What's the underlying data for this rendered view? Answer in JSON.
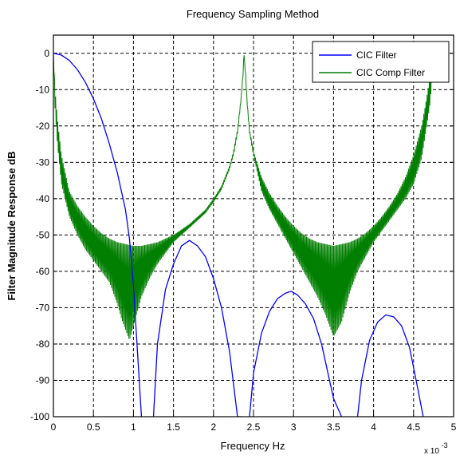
{
  "colors": {
    "cic_filter": "#0000ff",
    "cic_comp_filter": "#007f00",
    "axes": "#000000",
    "background": "#ffffff"
  },
  "chart_data": {
    "type": "line",
    "title": "Frequency Sampling Method",
    "xlabel": "Frequency Hz",
    "ylabel": "Filter Magnitude Response dB",
    "x_multiplier_label": "x 10",
    "x_multiplier_exponent": "-3",
    "xlim": [
      0,
      5
    ],
    "ylim": [
      -100,
      5
    ],
    "x_ticks": [
      0,
      0.5,
      1,
      1.5,
      2,
      2.5,
      3,
      3.5,
      4,
      4.5,
      5
    ],
    "x_tick_labels": [
      "0",
      "0.5",
      "1",
      "1.5",
      "2",
      "2.5",
      "3",
      "3.5",
      "4",
      "4.5",
      "5"
    ],
    "y_ticks": [
      0,
      -10,
      -20,
      -30,
      -40,
      -50,
      -60,
      -70,
      -80,
      -90,
      -100
    ],
    "y_tick_labels": [
      "0",
      "-10",
      "-20",
      "-30",
      "-40",
      "-50",
      "-60",
      "-70",
      "-80",
      "-90",
      "-100"
    ],
    "grid": true,
    "legend_position": "top-right",
    "series": [
      {
        "name": "CIC Filter",
        "color": "#0000ff",
        "x": [
          0,
          0.1,
          0.2,
          0.3,
          0.4,
          0.5,
          0.6,
          0.7,
          0.8,
          0.9,
          0.95,
          1.0,
          1.05,
          1.1
        ],
        "y": [
          0,
          -0.5,
          -2,
          -4.5,
          -8,
          -12.5,
          -18,
          -25,
          -33,
          -43,
          -51,
          -64,
          -82,
          -100
        ],
        "segments": [
          {
            "x": [
              1.25,
              1.3,
              1.4,
              1.5,
              1.6,
              1.7,
              1.8,
              1.9,
              2.0,
              2.1,
              2.2,
              2.3,
              2.35
            ],
            "y": [
              -100,
              -80,
              -65,
              -58,
              -53,
              -51.5,
              -53,
              -56,
              -62,
              -70,
              -82,
              -100,
              -100
            ]
          },
          {
            "x": [
              2.45,
              2.5,
              2.6,
              2.7,
              2.8,
              2.9,
              2.97,
              3.05,
              3.15,
              3.25,
              3.35,
              3.5,
              3.6
            ],
            "y": [
              -100,
              -88,
              -77,
              -71,
              -67.5,
              -66,
              -65.5,
              -66.5,
              -69,
              -73,
              -80,
              -95,
              -100
            ]
          },
          {
            "x": [
              3.8,
              3.85,
              3.95,
              4.05,
              4.15,
              4.25,
              4.35,
              4.45,
              4.55,
              4.62
            ],
            "y": [
              -100,
              -90,
              -79,
              -74,
              -72,
              -72.5,
              -75,
              -81,
              -92,
              -100
            ]
          }
        ]
      },
      {
        "name": "CIC Comp Filter",
        "color": "#007f00",
        "envelope_upper": {
          "x": [
            0,
            0.02,
            0.05,
            0.1,
            0.2,
            0.3,
            0.4,
            0.5,
            0.6,
            0.7,
            0.8,
            0.9,
            1.0,
            1.1,
            1.2,
            1.3,
            1.4,
            1.5,
            1.6,
            1.7,
            1.8,
            1.9,
            2.0,
            2.1,
            2.2,
            2.25,
            2.3,
            2.34,
            2.37,
            2.38,
            2.4,
            2.42,
            2.45,
            2.5,
            2.6,
            2.7,
            2.8,
            2.9,
            3.0,
            3.1,
            3.2,
            3.3,
            3.4,
            3.5,
            3.6,
            3.7,
            3.8,
            3.9,
            4.0,
            4.1,
            4.2,
            4.3,
            4.4,
            4.5,
            4.6,
            4.65,
            4.7,
            4.73,
            4.75
          ],
          "y": [
            0,
            -10,
            -18,
            -28,
            -38,
            -42,
            -45,
            -47.5,
            -49.5,
            -51,
            -52,
            -52.5,
            -53,
            -53,
            -52.5,
            -52,
            -51,
            -50,
            -48.5,
            -47,
            -45,
            -43,
            -40,
            -36.5,
            -31,
            -27,
            -21,
            -13,
            -5,
            0,
            -5,
            -13,
            -21,
            -27,
            -34,
            -38.5,
            -42,
            -45,
            -47.5,
            -49.5,
            -51,
            -52,
            -52.5,
            -53,
            -52.5,
            -52,
            -51,
            -49.5,
            -47.5,
            -45,
            -42,
            -38.5,
            -34,
            -28,
            -20,
            -14,
            -7,
            -2,
            0
          ]
        },
        "envelope_lower": {
          "x": [
            0,
            0.02,
            0.05,
            0.1,
            0.2,
            0.3,
            0.4,
            0.5,
            0.6,
            0.7,
            0.75,
            0.8,
            0.85,
            0.9,
            0.95,
            1.0,
            1.1,
            1.2,
            1.3,
            1.4,
            1.5,
            1.6,
            1.7,
            1.8,
            1.9,
            2.0,
            2.1,
            2.2,
            2.25,
            2.3,
            2.34,
            2.37,
            2.38,
            2.4,
            2.42,
            2.45,
            2.5,
            2.6,
            2.7,
            2.8,
            2.9,
            3.0,
            3.1,
            3.2,
            3.3,
            3.4,
            3.5,
            3.6,
            3.7,
            3.8,
            3.9,
            4.0,
            4.1,
            4.2,
            4.3,
            4.4,
            4.5,
            4.6,
            4.65,
            4.7,
            4.73,
            4.75
          ],
          "y": [
            0,
            -15,
            -25,
            -36,
            -45,
            -50,
            -54,
            -57,
            -60,
            -63,
            -66,
            -69,
            -73,
            -76,
            -79,
            -75,
            -67,
            -62,
            -58,
            -55,
            -52,
            -50,
            -48,
            -46,
            -44,
            -41,
            -37.5,
            -32,
            -28,
            -22,
            -14,
            -6,
            0,
            -6,
            -14,
            -22,
            -28,
            -38,
            -43,
            -47,
            -51,
            -55,
            -59,
            -63,
            -67,
            -72,
            -78,
            -74,
            -66,
            -60,
            -56,
            -52,
            -49,
            -46,
            -43,
            -40,
            -36,
            -29,
            -22,
            -15,
            -8,
            0
          ]
        }
      }
    ]
  }
}
